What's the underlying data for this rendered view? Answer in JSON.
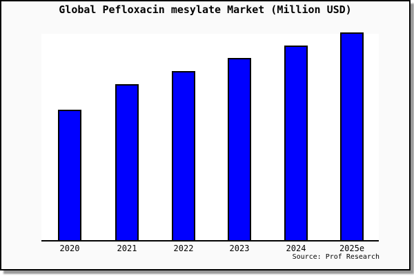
{
  "chart_data": {
    "type": "bar",
    "title": "Global Pefloxacin mesylate Market (Million USD)",
    "categories": [
      "2020",
      "2021",
      "2022",
      "2023",
      "2024",
      "2025e"
    ],
    "values": [
      62.7,
      75,
      81.3,
      87.7,
      93.7,
      100
    ],
    "values_note": "No y-axis scale or value labels are shown; values are relative bar heights with the tallest bar (2025e) = 100",
    "xlabel": "",
    "ylabel": "",
    "grid": false,
    "legend": "none",
    "source": "Source: Prof Research",
    "colors": {
      "bar_fill": "#0000ff",
      "bar_border": "#000000",
      "plot_background": "#ffffff",
      "figure_background": "#fafafa",
      "figure_border": "#000000",
      "shadow": "#999999",
      "text": "#000000"
    }
  }
}
